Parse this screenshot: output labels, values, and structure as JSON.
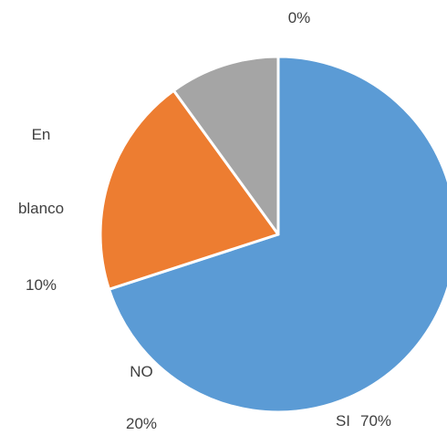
{
  "chart_data": {
    "type": "pie",
    "categories": [
      "SI",
      "NO",
      "En blanco",
      null
    ],
    "values": [
      70,
      20,
      10,
      0
    ],
    "value_labels": [
      "70%",
      "20%",
      "10%",
      "0%"
    ],
    "colors": [
      "#5b9bd5",
      "#ed7d31",
      "#a5a5a5",
      "#ffc000"
    ]
  }
}
